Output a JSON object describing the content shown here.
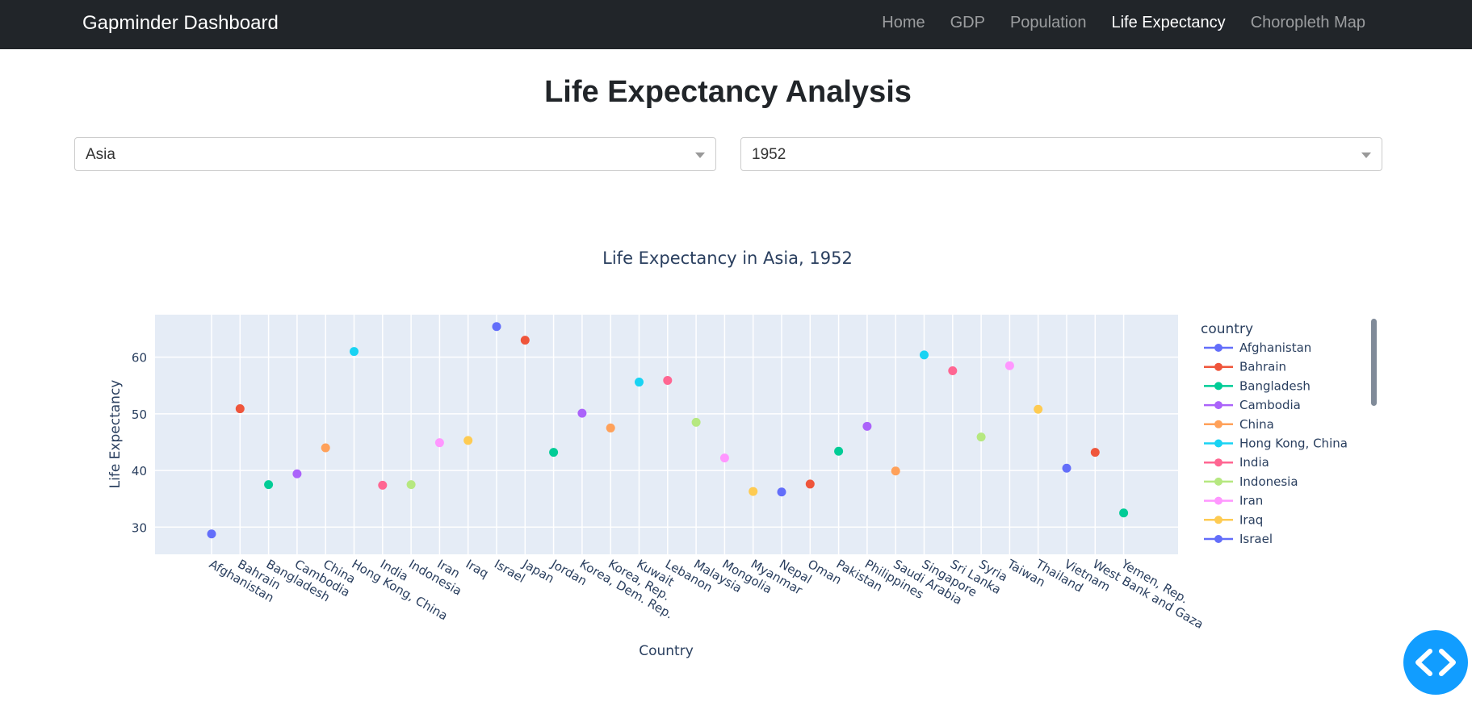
{
  "navbar": {
    "brand": "Gapminder Dashboard",
    "links": [
      {
        "label": "Home",
        "active": false
      },
      {
        "label": "GDP",
        "active": false
      },
      {
        "label": "Population",
        "active": false
      },
      {
        "label": "Life Expectancy",
        "active": true
      },
      {
        "label": "Choropleth Map",
        "active": false
      }
    ]
  },
  "page": {
    "title": "Life Expectancy Analysis"
  },
  "filters": {
    "continent": "Asia",
    "year": "1952"
  },
  "chart_data": {
    "type": "scatter",
    "title": "Life Expectancy in Asia, 1952",
    "xlabel": "Country",
    "ylabel": "Life Expectancy",
    "ylim": [
      25.2,
      67.5
    ],
    "yticks": [
      30,
      40,
      50,
      60
    ],
    "grid": true,
    "legend": {
      "title": "country",
      "placement": "right",
      "visible_count": 11
    },
    "categories": [
      "Afghanistan",
      "Bahrain",
      "Bangladesh",
      "Cambodia",
      "China",
      "Hong Kong, China",
      "India",
      "Indonesia",
      "Iran",
      "Iraq",
      "Israel",
      "Japan",
      "Jordan",
      "Korea, Dem. Rep.",
      "Korea, Rep.",
      "Kuwait",
      "Lebanon",
      "Malaysia",
      "Mongolia",
      "Myanmar",
      "Nepal",
      "Oman",
      "Pakistan",
      "Philippines",
      "Saudi Arabia",
      "Singapore",
      "Sri Lanka",
      "Syria",
      "Taiwan",
      "Thailand",
      "Vietnam",
      "West Bank and Gaza",
      "Yemen, Rep."
    ],
    "values": [
      28.8,
      50.9,
      37.5,
      39.4,
      44.0,
      61.0,
      37.4,
      37.5,
      44.9,
      45.3,
      65.4,
      63.0,
      43.2,
      50.1,
      47.5,
      55.6,
      55.9,
      48.5,
      42.2,
      36.3,
      36.2,
      37.6,
      43.4,
      47.8,
      39.9,
      60.4,
      57.6,
      45.9,
      58.5,
      50.8,
      40.4,
      43.2,
      32.5
    ],
    "colors": [
      "#636efa",
      "#EF553B",
      "#00cc96",
      "#ab63fa",
      "#FFA15A",
      "#19d3f3",
      "#FF6692",
      "#B6E880",
      "#FF97FF",
      "#FECB52"
    ]
  }
}
